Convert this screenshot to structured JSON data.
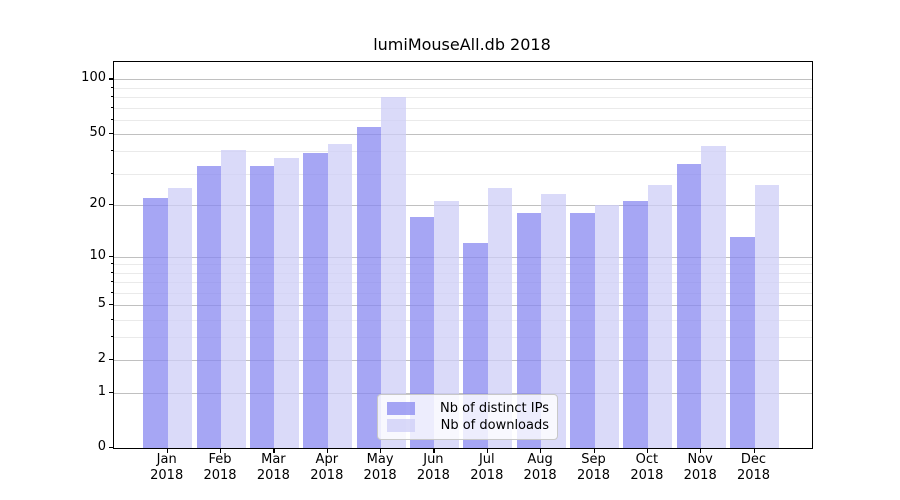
{
  "title": "lumiMouseAll.db 2018",
  "colors": {
    "ips_bar": "rgba(136,136,240,0.75)",
    "downloads_bar": "rgba(205,205,247,0.75)",
    "ips_bar_hex": "#a6a6f4",
    "downloads_bar_hex": "#dadaf9",
    "grid_major": "#c0c0c0",
    "grid_minor": "#eaeaea",
    "axis": "#000000",
    "text": "#000000",
    "legend_border": "#c8c8c8",
    "background": "#ffffff"
  },
  "legend": {
    "position": "lower center",
    "items": [
      {
        "label": "Nb of distinct IPs",
        "color_key": "ips_bar"
      },
      {
        "label": "Nb of downloads",
        "color_key": "downloads_bar"
      }
    ]
  },
  "y_axis": {
    "scale": "log1p",
    "major_ticks": [
      0,
      1,
      2,
      5,
      10,
      20,
      50,
      100
    ],
    "major_tick_labels": [
      "0",
      "1",
      "2",
      "5",
      "10",
      "20",
      "50",
      "100"
    ],
    "minor_ticks": [
      3,
      4,
      6,
      7,
      8,
      9,
      30,
      40,
      60,
      70,
      80,
      90
    ]
  },
  "x_axis": {
    "tick_labels_line1": [
      "Jan",
      "Feb",
      "Mar",
      "Apr",
      "May",
      "Jun",
      "Jul",
      "Aug",
      "Sep",
      "Oct",
      "Nov",
      "Dec"
    ],
    "tick_labels_line2": [
      "2018",
      "2018",
      "2018",
      "2018",
      "2018",
      "2018",
      "2018",
      "2018",
      "2018",
      "2018",
      "2018",
      "2018"
    ]
  },
  "chart_data": {
    "type": "bar",
    "title": "lumiMouseAll.db 2018",
    "xlabel": "",
    "ylabel": "",
    "categories": [
      "Jan 2018",
      "Feb 2018",
      "Mar 2018",
      "Apr 2018",
      "May 2018",
      "Jun 2018",
      "Jul 2018",
      "Aug 2018",
      "Sep 2018",
      "Oct 2018",
      "Nov 2018",
      "Dec 2018"
    ],
    "series": [
      {
        "name": "Nb of distinct IPs",
        "color": "rgba(136,136,240,0.75)",
        "values": [
          22,
          33,
          33,
          39,
          55,
          17,
          12,
          18,
          18,
          21,
          34,
          13
        ]
      },
      {
        "name": "Nb of downloads",
        "color": "rgba(205,205,247,0.75)",
        "values": [
          25,
          41,
          37,
          44,
          80,
          21,
          25,
          23,
          20,
          26,
          43,
          26
        ]
      }
    ],
    "yscale": "log1p",
    "ylim": [
      0,
      125
    ],
    "y_ticks": [
      0,
      1,
      2,
      5,
      10,
      20,
      50,
      100
    ],
    "grid": true,
    "legend_position": "lower center"
  }
}
